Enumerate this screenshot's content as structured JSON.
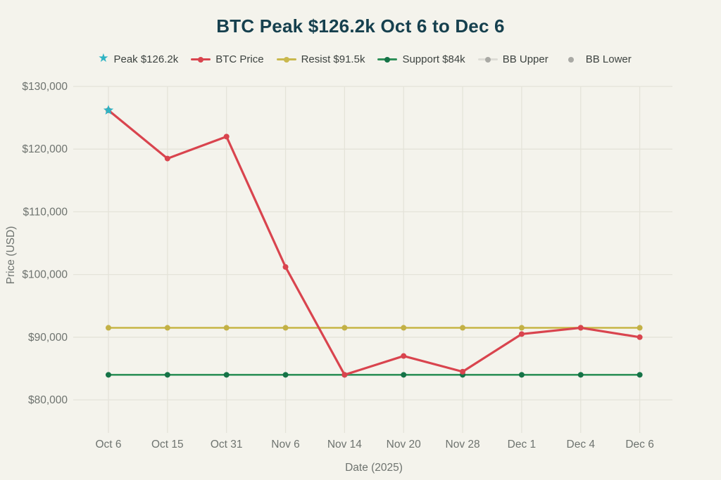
{
  "title": "BTC Peak $126.2k Oct 6 to Dec 6",
  "colors": {
    "background": "#f4f3ec",
    "title": "#16404e",
    "axis_text": "#6e736f",
    "grid": "#e4e3d9",
    "legend_text": "#3d4340",
    "peak": "#2fb3c3",
    "btc": "#d9444e",
    "resist": "#c9b84d",
    "resist_dot": "#c3b146",
    "support": "#2f9059",
    "support_dot": "#157347",
    "bb_line": "#dddcd6",
    "bb_dot": "#a9a9a4"
  },
  "legend": [
    {
      "label": "Peak $126.2k",
      "marker": "star",
      "color_key": "peak"
    },
    {
      "label": "BTC Price",
      "marker": "line-dot",
      "color_key": "btc"
    },
    {
      "label": "Resist $91.5k",
      "marker": "line-dot",
      "color_key": "resist"
    },
    {
      "label": "Support $84k",
      "marker": "line-dot",
      "color_key": "support",
      "dot_color_key": "support_dot"
    },
    {
      "label": "BB Upper",
      "marker": "line-dot",
      "color_key": "bb_line",
      "dot_color_key": "bb_dot"
    },
    {
      "label": "BB Lower",
      "marker": "dot",
      "color_key": "bb_dot",
      "dot_color_key": "bb_dot"
    }
  ],
  "chart_data": {
    "type": "line",
    "title": "BTC Peak $126.2k Oct 6 to Dec 6",
    "xlabel": "Date (2025)",
    "ylabel": "Price (USD)",
    "categories": [
      "Oct 6",
      "Oct 15",
      "Oct 31",
      "Nov 6",
      "Nov 14",
      "Nov 20",
      "Nov 28",
      "Dec 1",
      "Dec 4",
      "Dec 6"
    ],
    "series": [
      {
        "name": "BTC Price",
        "color_key": "btc",
        "dot_color_key": "btc",
        "line_width": 3.2,
        "values": [
          126200,
          118500,
          122000,
          101200,
          84000,
          87000,
          84500,
          90500,
          91500,
          90000
        ]
      },
      {
        "name": "Resist $91.5k",
        "color_key": "resist",
        "dot_color_key": "resist_dot",
        "line_width": 2.6,
        "values": [
          91500,
          91500,
          91500,
          91500,
          91500,
          91500,
          91500,
          91500,
          91500,
          91500
        ]
      },
      {
        "name": "Support $84k",
        "color_key": "support",
        "dot_color_key": "support_dot",
        "line_width": 2.6,
        "values": [
          84000,
          84000,
          84000,
          84000,
          84000,
          84000,
          84000,
          84000,
          84000,
          84000
        ]
      }
    ],
    "annotations": [
      {
        "type": "star",
        "label": "Peak $126.2k",
        "x": "Oct 6",
        "y": 126200,
        "color_key": "peak"
      }
    ],
    "ylim": [
      80000,
      130000
    ],
    "ytick_step": 10000,
    "ytick_prefix": "$",
    "grid": true,
    "legend_position": "top"
  }
}
